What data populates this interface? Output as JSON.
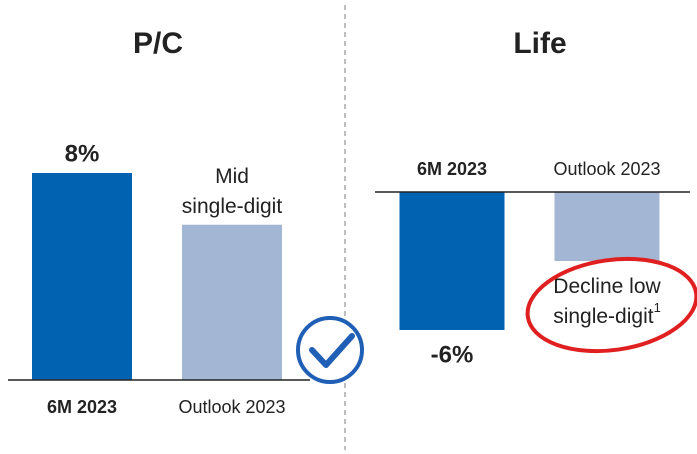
{
  "chart_data": [
    {
      "type": "bar",
      "title": "P/C",
      "categories": [
        "6M 2023",
        "Outlook 2023"
      ],
      "values": [
        8,
        6
      ],
      "value_labels": [
        "8%",
        "Mid single-digit"
      ],
      "colors": [
        "#0062b1",
        "#a3b6d4"
      ],
      "ylim": [
        0,
        8
      ]
    },
    {
      "type": "bar",
      "title": "Life",
      "categories": [
        "6M 2023",
        "Outlook 2023"
      ],
      "values": [
        -6,
        -3
      ],
      "value_labels": [
        "-6%",
        "Decline low single-digit"
      ],
      "value_label_notes": [
        null,
        "1"
      ],
      "colors": [
        "#0062b1",
        "#a3b6d4"
      ],
      "ylim": [
        -6,
        0
      ]
    }
  ]
}
